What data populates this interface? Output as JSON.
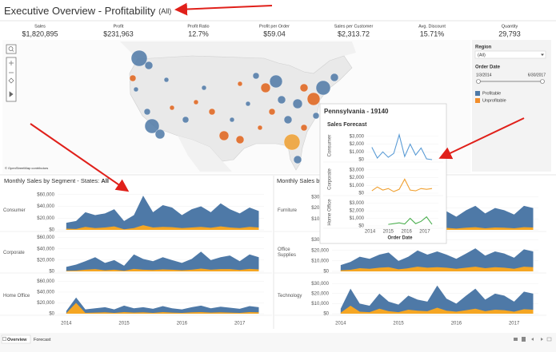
{
  "header": {
    "title": "Executive Overview - Profitability",
    "filter": "(All)"
  },
  "kpis": [
    {
      "label": "Sales",
      "value": "$1,820,895"
    },
    {
      "label": "Profit",
      "value": "$231,963"
    },
    {
      "label": "Profit Ratio",
      "value": "12.7%"
    },
    {
      "label": "Profit per Order",
      "value": "$59.04"
    },
    {
      "label": "Sales per Customer",
      "value": "$2,313.72"
    },
    {
      "label": "Avg. Discount",
      "value": "15.71%"
    },
    {
      "label": "Quantity",
      "value": "29,793"
    }
  ],
  "map": {
    "attribution": "© OpenStreetMap contributors"
  },
  "filters": {
    "region_label": "Region",
    "region_value": "(All)",
    "date_label": "Order Date",
    "date_start": "1/3/2014",
    "date_end": "6/30/2017",
    "legend": [
      {
        "name": "Profitable",
        "color": "#4e79a7"
      },
      {
        "name": "Unprofitable",
        "color": "#f28e2b"
      }
    ]
  },
  "tooltip": {
    "title": "Pennsylvania - 19140",
    "subtitle": "Sales Forecast",
    "x_label": "Order Date",
    "x": [
      2014.1,
      2014.4,
      2014.7,
      2015.0,
      2015.3,
      2015.6,
      2015.9,
      2016.2,
      2016.5,
      2016.8,
      2017.1,
      2017.4
    ],
    "xlim": [
      2013.8,
      2017.75
    ],
    "xticks": [
      2014,
      2015,
      2016,
      2017
    ],
    "ylim": [
      0,
      3600
    ],
    "yticks": [
      {
        "value": 0,
        "label": "$0"
      },
      {
        "value": 1000,
        "label": "$1,000"
      },
      {
        "value": 2000,
        "label": "$2,000"
      },
      {
        "value": 3000,
        "label": "$3,000"
      }
    ],
    "rows": [
      {
        "name": "Consumer",
        "color": "#5a9bd5",
        "values": [
          1600,
          200,
          1000,
          300,
          800,
          3200,
          400,
          2000,
          600,
          1500,
          100,
          0
        ]
      },
      {
        "name": "Corporate",
        "color": "#f0a030",
        "values": [
          300,
          800,
          400,
          600,
          200,
          500,
          1800,
          400,
          300,
          600,
          500,
          600
        ]
      },
      {
        "name": "Home Office",
        "color": "#4caf50",
        "values": [
          null,
          null,
          null,
          200,
          300,
          400,
          250,
          1000,
          300,
          600,
          1200,
          200
        ]
      }
    ]
  },
  "charts": [
    {
      "title": "Monthly Sales by Segment - States: ",
      "title_bold": "All",
      "x": [
        2014,
        2014.17,
        2014.33,
        2014.5,
        2014.67,
        2014.83,
        2015,
        2015.17,
        2015.33,
        2015.5,
        2015.67,
        2015.83,
        2016,
        2016.17,
        2016.33,
        2016.5,
        2016.67,
        2016.83,
        2017,
        2017.17,
        2017.33
      ],
      "xlim": [
        2013.85,
        2017.42
      ],
      "xticks": [
        2014,
        2015,
        2016,
        2017
      ],
      "ylim": [
        0,
        65000
      ],
      "yticks": [
        {
          "value": 0,
          "label": "$0"
        },
        {
          "value": 20000,
          "label": "$20,000"
        },
        {
          "value": 40000,
          "label": "$40,000"
        },
        {
          "value": 60000,
          "label": "$60,000"
        }
      ],
      "rows": [
        {
          "name": "Consumer",
          "series": [
            {
              "color": "#4e79a7",
              "values": [
                12000,
                15000,
                30000,
                25000,
                28000,
                35000,
                15000,
                25000,
                58000,
                30000,
                42000,
                38000,
                25000,
                35000,
                40000,
                30000,
                45000,
                35000,
                28000,
                38000,
                32000
              ]
            },
            {
              "color": "#f5a623",
              "values": [
                2000,
                1500,
                5000,
                3000,
                4000,
                6000,
                1000,
                3000,
                8000,
                4000,
                5000,
                4500,
                3000,
                4000,
                5000,
                3500,
                6000,
                4000,
                3000,
                5000,
                4000
              ]
            }
          ]
        },
        {
          "name": "Corporate",
          "series": [
            {
              "color": "#4e79a7",
              "values": [
                8000,
                12000,
                18000,
                25000,
                15000,
                20000,
                10000,
                30000,
                22000,
                18000,
                25000,
                20000,
                15000,
                22000,
                35000,
                20000,
                25000,
                28000,
                18000,
                30000,
                25000
              ]
            },
            {
              "color": "#f5a623",
              "values": [
                1000,
                1500,
                3000,
                4000,
                2000,
                3000,
                1000,
                4500,
                3000,
                2500,
                3500,
                3000,
                2000,
                3000,
                5000,
                3000,
                4000,
                4000,
                2500,
                4500,
                3500
              ]
            }
          ]
        },
        {
          "name": "Home Office",
          "series": [
            {
              "color": "#4e79a7",
              "values": [
                5000,
                30000,
                8000,
                10000,
                12000,
                8000,
                15000,
                10000,
                12000,
                9000,
                14000,
                10000,
                8000,
                12000,
                15000,
                10000,
                13000,
                11000,
                9000,
                14000,
                12000
              ]
            },
            {
              "color": "#f5a623",
              "values": [
                1000,
                20000,
                1500,
                2000,
                2500,
                1500,
                3000,
                2000,
                2500,
                1500,
                3000,
                2000,
                1500,
                2500,
                3000,
                2000,
                2500,
                2000,
                1500,
                3000,
                2500
              ]
            }
          ]
        }
      ]
    },
    {
      "title": "Monthly Sales by Category",
      "x": [
        2014,
        2014.17,
        2014.33,
        2014.5,
        2014.67,
        2014.83,
        2015,
        2015.17,
        2015.33,
        2015.5,
        2015.67,
        2015.83,
        2016,
        2016.17,
        2016.33,
        2016.5,
        2016.67,
        2016.83,
        2017,
        2017.17,
        2017.33
      ],
      "xlim": [
        2013.85,
        2017.42
      ],
      "xticks": [
        2014,
        2015,
        2016,
        2017
      ],
      "ylim": [
        0,
        35000
      ],
      "yticks": [
        {
          "value": 0,
          "label": "$0"
        },
        {
          "value": 10000,
          "label": "$10,000"
        },
        {
          "value": 20000,
          "label": "$20,000"
        },
        {
          "value": 30000,
          "label": "$30,000"
        }
      ],
      "rows": [
        {
          "name": "Furniture",
          "series": [
            {
              "color": "#4e79a7",
              "values": [
                5000,
                8000,
                15000,
                12000,
                18000,
                20000,
                10000,
                15000,
                22000,
                18000,
                20000,
                17000,
                12000,
                18000,
                22000,
                15000,
                20000,
                18000,
                14000,
                22000,
                20000
              ]
            },
            {
              "color": "#f5a623",
              "values": [
                500,
                800,
                1500,
                1200,
                1800,
                2000,
                1000,
                1500,
                2500,
                2000,
                2200,
                1800,
                1200,
                2000,
                2500,
                1500,
                2200,
                2000,
                1500,
                2500,
                2200
              ]
            }
          ]
        },
        {
          "name": "Office Supplies",
          "series": [
            {
              "color": "#4e79a7",
              "values": [
                6000,
                9000,
                14000,
                12000,
                16000,
                18000,
                10000,
                14000,
                20000,
                16000,
                19000,
                16000,
                12000,
                17000,
                22000,
                15000,
                19000,
                17000,
                13000,
                21000,
                19000
              ]
            },
            {
              "color": "#f5a623",
              "values": [
                1000,
                1500,
                3000,
                2500,
                3500,
                4000,
                2000,
                3000,
                4500,
                3500,
                4000,
                3500,
                2500,
                3500,
                4500,
                3000,
                4000,
                3500,
                2500,
                4500,
                4000
              ]
            }
          ]
        },
        {
          "name": "Technology",
          "series": [
            {
              "color": "#4e79a7",
              "values": [
                5000,
                25000,
                10000,
                8000,
                20000,
                12000,
                9000,
                18000,
                14000,
                12000,
                28000,
                15000,
                10000,
                18000,
                25000,
                14000,
                20000,
                18000,
                12000,
                22000,
                20000
              ]
            },
            {
              "color": "#f5a623",
              "values": [
                1000,
                8000,
                2000,
                1500,
                5000,
                2500,
                1500,
                4000,
                3000,
                2500,
                6000,
                3000,
                2000,
                3500,
                5000,
                2500,
                4000,
                3500,
                2000,
                4500,
                4000
              ]
            }
          ]
        }
      ]
    }
  ],
  "tabs": [
    "Overview",
    "Forecast"
  ]
}
